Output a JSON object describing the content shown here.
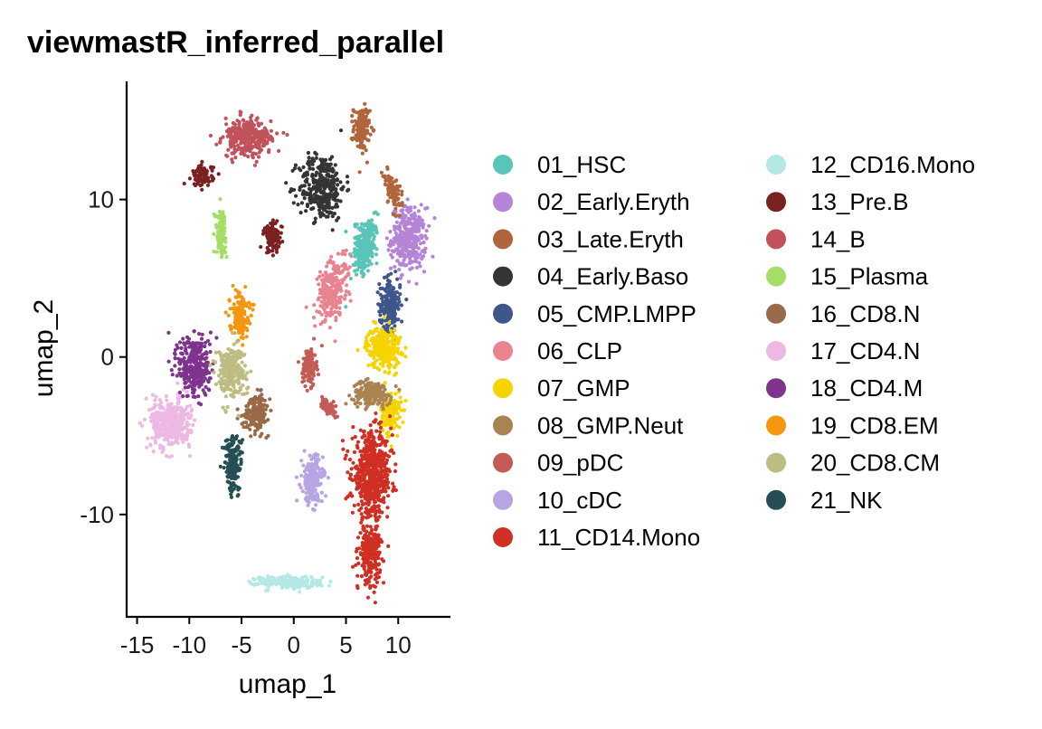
{
  "chart_data": {
    "type": "scatter",
    "title": "viewmastR_inferred_parallel",
    "xlabel": "umap_1",
    "ylabel": "umap_2",
    "xlim": [
      -16,
      15
    ],
    "ylim": [
      -16.5,
      17.5
    ],
    "xticks": [
      -15,
      -10,
      -5,
      0,
      5,
      10
    ],
    "xtick_labels": [
      "-15",
      "-10",
      "-5",
      "0",
      "5",
      "10"
    ],
    "yticks": [
      -10,
      0,
      10
    ],
    "ytick_labels": [
      "-10",
      "0",
      "10"
    ],
    "grid": false,
    "legend_position": "right",
    "legend_columns": 2,
    "series": [
      {
        "name": "01_HSC",
        "color": "#5BC4B8",
        "clusters": [
          {
            "cx": 6.8,
            "cy": 7.0,
            "sx": 0.9,
            "sy": 1.8,
            "rot": -15,
            "n": 260
          }
        ]
      },
      {
        "name": "02_Early.Eryth",
        "color": "#B584D6",
        "clusters": [
          {
            "cx": 11.0,
            "cy": 7.5,
            "sx": 1.5,
            "sy": 1.8,
            "rot": 0,
            "n": 330
          }
        ]
      },
      {
        "name": "03_Late.Eryth",
        "color": "#B1653C",
        "clusters": [
          {
            "cx": 6.5,
            "cy": 14.5,
            "sx": 0.7,
            "sy": 1.3,
            "rot": 0,
            "n": 140
          },
          {
            "cx": 9.5,
            "cy": 10.5,
            "sx": 0.6,
            "sy": 1.2,
            "rot": 30,
            "n": 90
          }
        ]
      },
      {
        "name": "04_Early.Baso",
        "color": "#343434",
        "clusters": [
          {
            "cx": 2.7,
            "cy": 10.8,
            "sx": 2.0,
            "sy": 1.9,
            "rot": 0,
            "n": 330
          }
        ]
      },
      {
        "name": "05_CMP.LMPP",
        "color": "#3F568A",
        "clusters": [
          {
            "cx": 9.2,
            "cy": 3.3,
            "sx": 0.9,
            "sy": 1.5,
            "rot": 0,
            "n": 210
          }
        ]
      },
      {
        "name": "06_CLP",
        "color": "#E8838F",
        "clusters": [
          {
            "cx": 3.7,
            "cy": 4.3,
            "sx": 1.2,
            "sy": 1.9,
            "rot": -20,
            "n": 260
          }
        ]
      },
      {
        "name": "07_GMP",
        "color": "#F5D400",
        "clusters": [
          {
            "cx": 8.6,
            "cy": 0.6,
            "sx": 1.5,
            "sy": 1.2,
            "rot": 0,
            "n": 260
          },
          {
            "cx": 9.3,
            "cy": -3.6,
            "sx": 0.9,
            "sy": 1.3,
            "rot": 0,
            "n": 130
          }
        ]
      },
      {
        "name": "08_GMP.Neut",
        "color": "#A98351",
        "clusters": [
          {
            "cx": 7.5,
            "cy": -2.3,
            "sx": 1.7,
            "sy": 0.7,
            "rot": 0,
            "n": 190
          }
        ]
      },
      {
        "name": "09_pDC",
        "color": "#C35C56",
        "clusters": [
          {
            "cx": 1.5,
            "cy": -0.6,
            "sx": 0.6,
            "sy": 1.1,
            "rot": 0,
            "n": 120
          },
          {
            "cx": 3.2,
            "cy": -3.2,
            "sx": 0.9,
            "sy": 0.4,
            "rot": -30,
            "n": 60
          }
        ]
      },
      {
        "name": "10_cDC",
        "color": "#B7A4E3",
        "clusters": [
          {
            "cx": 1.8,
            "cy": -7.8,
            "sx": 0.9,
            "sy": 1.4,
            "rot": 0,
            "n": 200
          }
        ]
      },
      {
        "name": "11_CD14.Mono",
        "color": "#D02F23",
        "clusters": [
          {
            "cx": 7.5,
            "cy": -7.5,
            "sx": 1.7,
            "sy": 2.4,
            "rot": 0,
            "n": 600
          },
          {
            "cx": 7.3,
            "cy": -12.5,
            "sx": 0.9,
            "sy": 1.6,
            "rot": 0,
            "n": 240
          }
        ]
      },
      {
        "name": "12_CD16.Mono",
        "color": "#B3E8E5",
        "clusters": [
          {
            "cx": -0.5,
            "cy": -14.3,
            "sx": 2.8,
            "sy": 0.35,
            "rot": 0,
            "n": 230
          }
        ]
      },
      {
        "name": "13_Pre.B",
        "color": "#7A2121",
        "clusters": [
          {
            "cx": -8.7,
            "cy": 11.5,
            "sx": 0.9,
            "sy": 0.6,
            "rot": 0,
            "n": 100
          },
          {
            "cx": -2.0,
            "cy": 7.6,
            "sx": 0.8,
            "sy": 0.9,
            "rot": 0,
            "n": 100
          }
        ]
      },
      {
        "name": "14_B",
        "color": "#C1525B",
        "clusters": [
          {
            "cx": -4.4,
            "cy": 13.9,
            "sx": 2.1,
            "sy": 1.1,
            "rot": 0,
            "n": 300
          }
        ]
      },
      {
        "name": "15_Plasma",
        "color": "#A4DD67",
        "clusters": [
          {
            "cx": -7.0,
            "cy": 8.0,
            "sx": 0.45,
            "sy": 1.2,
            "rot": 0,
            "n": 120
          }
        ]
      },
      {
        "name": "16_CD8.N",
        "color": "#996A49",
        "clusters": [
          {
            "cx": -3.6,
            "cy": -3.5,
            "sx": 1.1,
            "sy": 1.0,
            "rot": 0,
            "n": 170
          }
        ]
      },
      {
        "name": "17_CD4.N",
        "color": "#EDB9E4",
        "clusters": [
          {
            "cx": -11.8,
            "cy": -4.2,
            "sx": 1.7,
            "sy": 1.4,
            "rot": 0,
            "n": 400
          }
        ]
      },
      {
        "name": "18_CD4.M",
        "color": "#7E338D",
        "clusters": [
          {
            "cx": -9.5,
            "cy": -0.6,
            "sx": 1.4,
            "sy": 1.8,
            "rot": 0,
            "n": 330
          }
        ]
      },
      {
        "name": "19_CD8.EM",
        "color": "#F4960F",
        "clusters": [
          {
            "cx": -5.2,
            "cy": 2.8,
            "sx": 0.85,
            "sy": 1.3,
            "rot": 0,
            "n": 150
          }
        ]
      },
      {
        "name": "20_CD8.CM",
        "color": "#BDBC82",
        "clusters": [
          {
            "cx": -6.0,
            "cy": -0.9,
            "sx": 1.3,
            "sy": 1.5,
            "rot": 0,
            "n": 240
          }
        ]
      },
      {
        "name": "21_NK",
        "color": "#254F54",
        "clusters": [
          {
            "cx": -5.8,
            "cy": -6.8,
            "sx": 0.75,
            "sy": 1.6,
            "rot": 0,
            "n": 200
          }
        ]
      }
    ]
  }
}
